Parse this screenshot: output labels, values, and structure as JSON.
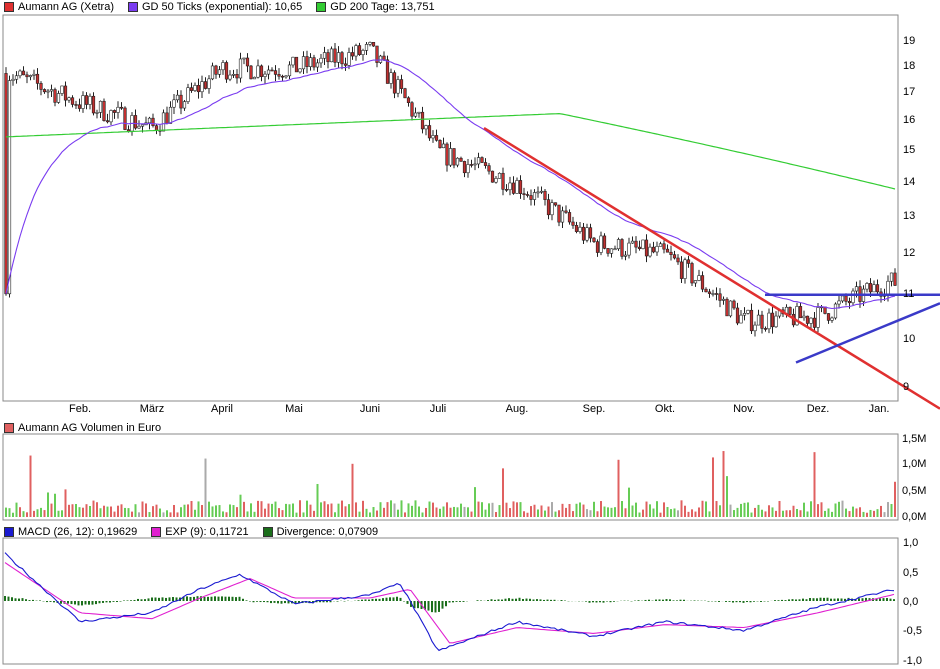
{
  "legend": {
    "price": {
      "label": "Aumann AG (Xetra)",
      "color": "#e03030"
    },
    "gd50": {
      "label": "GD 50 Ticks (exponential): 10,65",
      "color": "#7a3cf0"
    },
    "gd200": {
      "label": "GD 200 Tage: 13,751",
      "color": "#33cc33"
    },
    "volume": {
      "label": "Aumann AG Volumen in Euro",
      "color": "#e06060"
    },
    "macd": {
      "label": "MACD (26, 12): 0,19629",
      "color": "#1a1ad0"
    },
    "exp": {
      "label": "EXP (9): 0,11721",
      "color": "#e020d0"
    },
    "divergence": {
      "label": "Divergence: 0,07909",
      "color": "#1a6e1a"
    }
  },
  "chart_data": [
    {
      "type": "candlestick",
      "title": "Aumann AG (Xetra)",
      "x_ticks": [
        "Feb.",
        "März",
        "April",
        "Mai",
        "Juni",
        "Juli",
        "Aug.",
        "Sep.",
        "Okt.",
        "Nov.",
        "Dez.",
        "Jan."
      ],
      "y_ticks": [
        "19",
        "18",
        "17",
        "16",
        "15",
        "14",
        "13",
        "12",
        "11",
        "10",
        "9"
      ],
      "y_scale": "log",
      "ylim": [
        8.6,
        19.8
      ],
      "series": [
        {
          "name": "Aumann AG (Xetra)",
          "approx_close_path": [
            {
              "month": "Jan.",
              "value": 17.6
            },
            {
              "month": "Feb.",
              "value": 16.5
            },
            {
              "month": "März",
              "value": 15.6
            },
            {
              "month": "April",
              "value": 17.8
            },
            {
              "month": "Mai",
              "value": 17.8
            },
            {
              "month": "Juni",
              "value": 18.5
            },
            {
              "month": "Juli",
              "value": 14.8
            },
            {
              "month": "Aug.",
              "value": 13.8
            },
            {
              "month": "Sep.",
              "value": 12.1
            },
            {
              "month": "Okt.",
              "value": 11.8
            },
            {
              "month": "Nov.",
              "value": 10.2
            },
            {
              "month": "Dez.",
              "value": 10.3
            },
            {
              "month": "Jan.",
              "value": 11.1
            }
          ]
        },
        {
          "name": "GD 50 Ticks (exponential)",
          "last": 10.65
        },
        {
          "name": "GD 200 Tage",
          "last": 13.751
        }
      ],
      "trendlines": [
        {
          "color": "#e03030",
          "from_value": 15.6,
          "to_value": 8.4
        },
        {
          "color": "#3a3ac8",
          "value": 10.8
        },
        {
          "color": "#3a3ac8",
          "from_value": 9.3,
          "to_value": 10.6
        }
      ],
      "grid": false
    },
    {
      "type": "bar",
      "title": "Aumann AG Volumen in Euro",
      "y_ticks": [
        "1,5M",
        "1,0M",
        "0,5M",
        "0,0M"
      ],
      "ylim": [
        0,
        1.5
      ]
    },
    {
      "type": "line",
      "title": "MACD",
      "y_ticks": [
        "1,0",
        "0,5",
        "0,0",
        "-0,5",
        "-1,0"
      ],
      "ylim": [
        -1,
        1
      ],
      "series": [
        {
          "name": "MACD (26, 12)",
          "last": 0.19629
        },
        {
          "name": "EXP (9)",
          "last": 0.11721
        },
        {
          "name": "Divergence",
          "last": 0.07909
        }
      ]
    }
  ]
}
